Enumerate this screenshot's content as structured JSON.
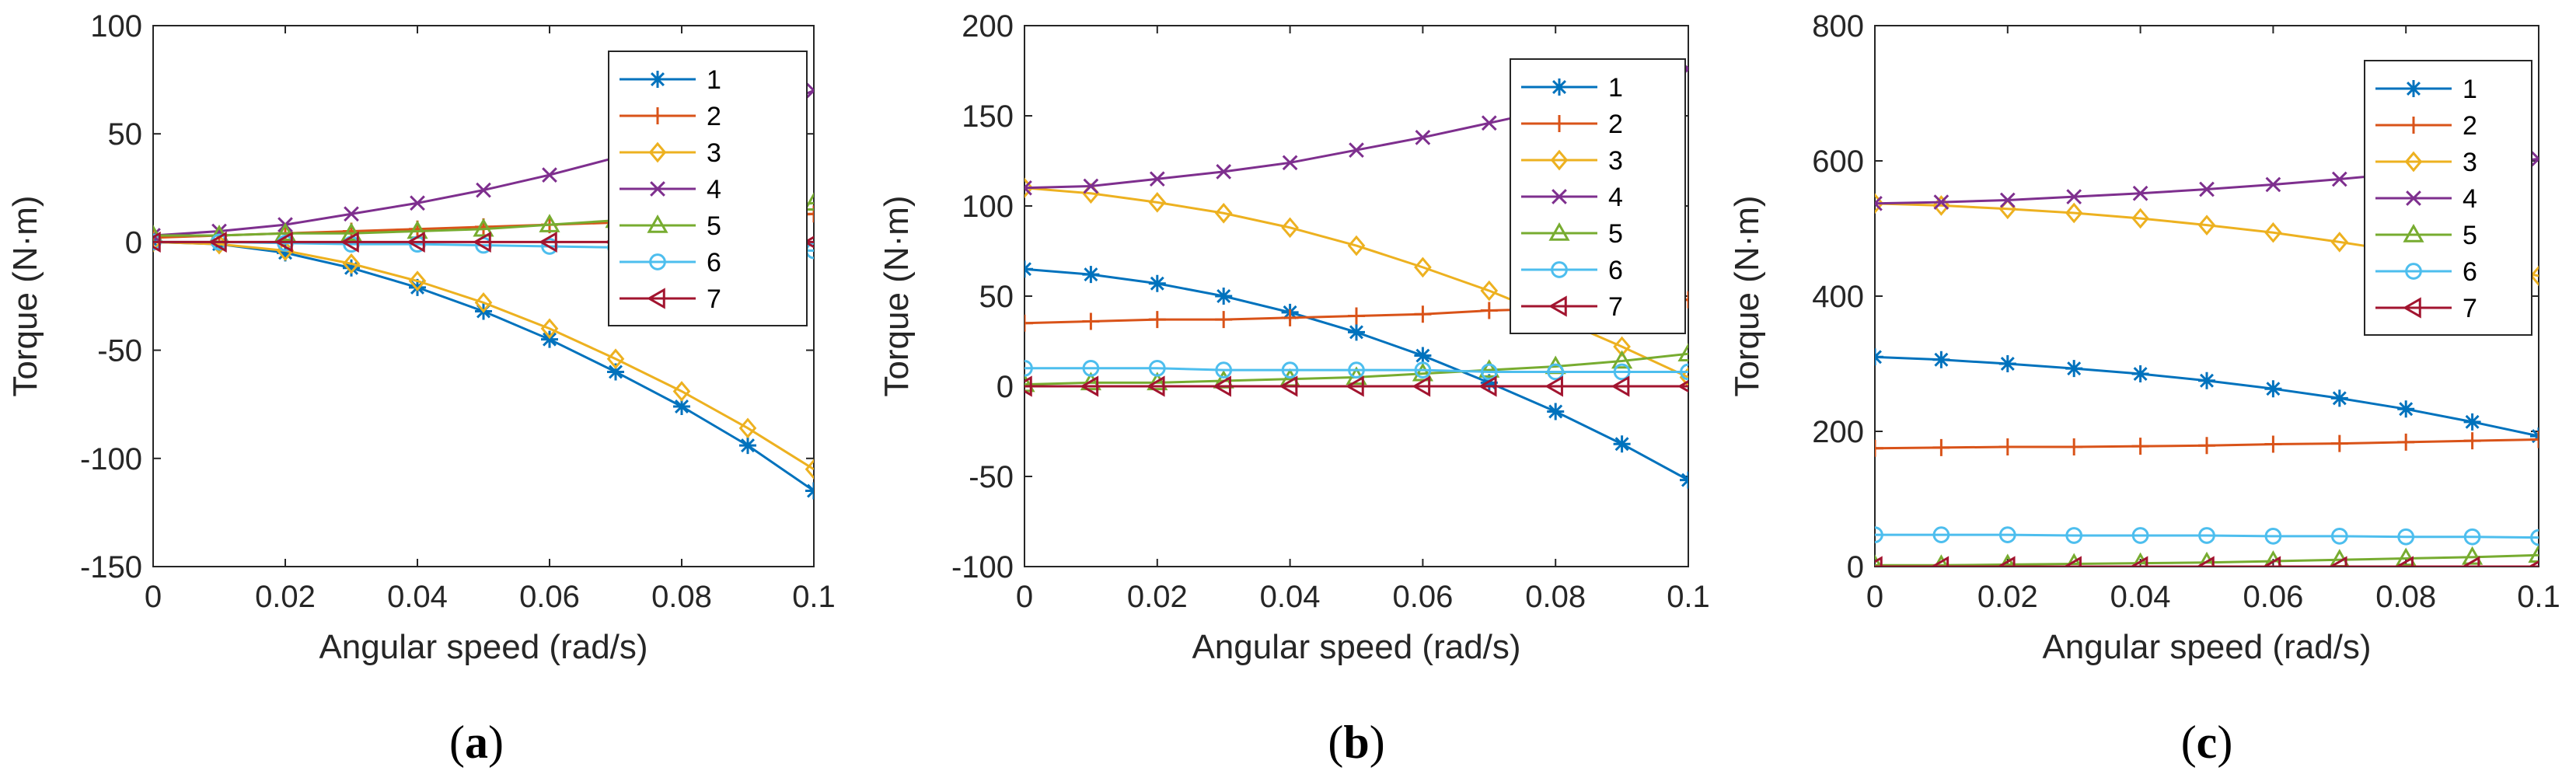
{
  "chart_data": [
    {
      "type": "line",
      "panel_label": {
        "open": "(",
        "letter": "a",
        "close": ")"
      },
      "xlabel": "Angular speed (rad/s)",
      "ylabel": "Torque (N·m)",
      "xlim": [
        0,
        0.1
      ],
      "ylim": [
        -150,
        100
      ],
      "x_ticks": [
        0,
        0.02,
        0.04,
        0.06,
        0.08,
        0.1
      ],
      "x_tick_labels": [
        "0",
        "0.02",
        "0.04",
        "0.06",
        "0.08",
        "0.1"
      ],
      "y_ticks": [
        -150,
        -100,
        -50,
        0,
        50,
        100
      ],
      "y_tick_labels": [
        "-150",
        "-100",
        "-50",
        "0",
        "50",
        "100"
      ],
      "grid": false,
      "legend": "top-right",
      "x": [
        0,
        0.01,
        0.02,
        0.03,
        0.04,
        0.05,
        0.06,
        0.07,
        0.08,
        0.09,
        0.1
      ],
      "series": [
        {
          "name": "1",
          "color": "#0072BD",
          "marker": "asterisk",
          "values": [
            0,
            -1,
            -5,
            -12,
            -21,
            -32,
            -45,
            -60,
            -76,
            -94,
            -115
          ]
        },
        {
          "name": "2",
          "color": "#D95319",
          "marker": "plus",
          "values": [
            2,
            3,
            4,
            5,
            6,
            7,
            8,
            9,
            10,
            11,
            13
          ]
        },
        {
          "name": "3",
          "color": "#EDB120",
          "marker": "diamond",
          "values": [
            0,
            -1,
            -4,
            -10,
            -18,
            -28,
            -40,
            -54,
            -69,
            -86,
            -105
          ]
        },
        {
          "name": "4",
          "color": "#7E2F8E",
          "marker": "x",
          "values": [
            3,
            5,
            8,
            13,
            18,
            24,
            31,
            39,
            48,
            58,
            70
          ]
        },
        {
          "name": "5",
          "color": "#77AC30",
          "marker": "triangle-up",
          "values": [
            3,
            3,
            4,
            4,
            5,
            6,
            8,
            10,
            12,
            15,
            18
          ]
        },
        {
          "name": "6",
          "color": "#4DBEEE",
          "marker": "circle",
          "values": [
            0,
            0,
            -0.5,
            -1,
            -1,
            -1.5,
            -2,
            -2.5,
            -3,
            -3.5,
            -4
          ]
        },
        {
          "name": "7",
          "color": "#A2142F",
          "marker": "triangle-left",
          "values": [
            0,
            0,
            0,
            0,
            0,
            0,
            0,
            0,
            0,
            0,
            0
          ]
        }
      ]
    },
    {
      "type": "line",
      "panel_label": {
        "open": "(",
        "letter": "b",
        "close": ")"
      },
      "xlabel": "Angular speed (rad/s)",
      "ylabel": "Torque (N·m)",
      "xlim": [
        0,
        0.1
      ],
      "ylim": [
        -100,
        200
      ],
      "x_ticks": [
        0,
        0.02,
        0.04,
        0.06,
        0.08,
        0.1
      ],
      "x_tick_labels": [
        "0",
        "0.02",
        "0.04",
        "0.06",
        "0.08",
        "0.1"
      ],
      "y_ticks": [
        -100,
        -50,
        0,
        50,
        100,
        150,
        200
      ],
      "y_tick_labels": [
        "-100",
        "-50",
        "0",
        "50",
        "100",
        "150",
        "200"
      ],
      "grid": false,
      "legend": "top-right",
      "x": [
        0,
        0.01,
        0.02,
        0.03,
        0.04,
        0.05,
        0.06,
        0.07,
        0.08,
        0.09,
        0.1
      ],
      "series": [
        {
          "name": "1",
          "color": "#0072BD",
          "marker": "asterisk",
          "values": [
            65,
            62,
            57,
            50,
            41,
            30,
            17,
            2,
            -14,
            -32,
            -52
          ]
        },
        {
          "name": "2",
          "color": "#D95319",
          "marker": "plus",
          "values": [
            35,
            36,
            37,
            37,
            38,
            39,
            40,
            42,
            43,
            45,
            48
          ]
        },
        {
          "name": "3",
          "color": "#EDB120",
          "marker": "diamond",
          "values": [
            110,
            107,
            102,
            96,
            88,
            78,
            66,
            53,
            38,
            22,
            5
          ]
        },
        {
          "name": "4",
          "color": "#7E2F8E",
          "marker": "x",
          "values": [
            110,
            111,
            115,
            119,
            124,
            131,
            138,
            146,
            154,
            164,
            176
          ]
        },
        {
          "name": "5",
          "color": "#77AC30",
          "marker": "triangle-up",
          "values": [
            1,
            2,
            2,
            3,
            4,
            5,
            7,
            9,
            11,
            14,
            18
          ]
        },
        {
          "name": "6",
          "color": "#4DBEEE",
          "marker": "circle",
          "values": [
            10,
            10,
            10,
            9,
            9,
            9,
            9,
            8,
            8,
            8,
            8
          ]
        },
        {
          "name": "7",
          "color": "#A2142F",
          "marker": "triangle-left",
          "values": [
            0,
            0,
            0,
            0,
            0,
            0,
            0,
            0,
            0,
            0,
            0
          ]
        }
      ]
    },
    {
      "type": "line",
      "panel_label": {
        "open": "(",
        "letter": "c",
        "close": ")"
      },
      "xlabel": "Angular speed (rad/s)",
      "ylabel": "Torque (N·m)",
      "xlim": [
        0,
        0.1
      ],
      "ylim": [
        0,
        800
      ],
      "x_ticks": [
        0,
        0.02,
        0.04,
        0.06,
        0.08,
        0.1
      ],
      "x_tick_labels": [
        "0",
        "0.02",
        "0.04",
        "0.06",
        "0.08",
        "0.1"
      ],
      "y_ticks": [
        0,
        200,
        400,
        600,
        800
      ],
      "y_tick_labels": [
        "0",
        "200",
        "400",
        "600",
        "800"
      ],
      "grid": false,
      "legend": "top-right",
      "x": [
        0,
        0.01,
        0.02,
        0.03,
        0.04,
        0.05,
        0.06,
        0.07,
        0.08,
        0.09,
        0.1
      ],
      "series": [
        {
          "name": "1",
          "color": "#0072BD",
          "marker": "asterisk",
          "values": [
            310,
            306,
            300,
            293,
            285,
            275,
            263,
            249,
            233,
            214,
            193
          ]
        },
        {
          "name": "2",
          "color": "#D95319",
          "marker": "plus",
          "values": [
            175,
            176,
            177,
            177,
            178,
            179,
            181,
            182,
            184,
            186,
            188
          ]
        },
        {
          "name": "3",
          "color": "#EDB120",
          "marker": "diamond",
          "values": [
            537,
            534,
            529,
            523,
            515,
            505,
            494,
            480,
            465,
            448,
            430
          ]
        },
        {
          "name": "4",
          "color": "#7E2F8E",
          "marker": "x",
          "values": [
            537,
            539,
            542,
            547,
            552,
            558,
            565,
            573,
            582,
            592,
            603
          ]
        },
        {
          "name": "5",
          "color": "#77AC30",
          "marker": "triangle-up",
          "values": [
            2,
            2,
            3,
            4,
            5,
            6,
            8,
            10,
            12,
            14,
            17
          ]
        },
        {
          "name": "6",
          "color": "#4DBEEE",
          "marker": "circle",
          "values": [
            47,
            47,
            47,
            46,
            46,
            46,
            45,
            45,
            44,
            44,
            43
          ]
        },
        {
          "name": "7",
          "color": "#A2142F",
          "marker": "triangle-left",
          "values": [
            0,
            0,
            0,
            0,
            0,
            0,
            0,
            0,
            0,
            0,
            0
          ]
        }
      ]
    }
  ]
}
